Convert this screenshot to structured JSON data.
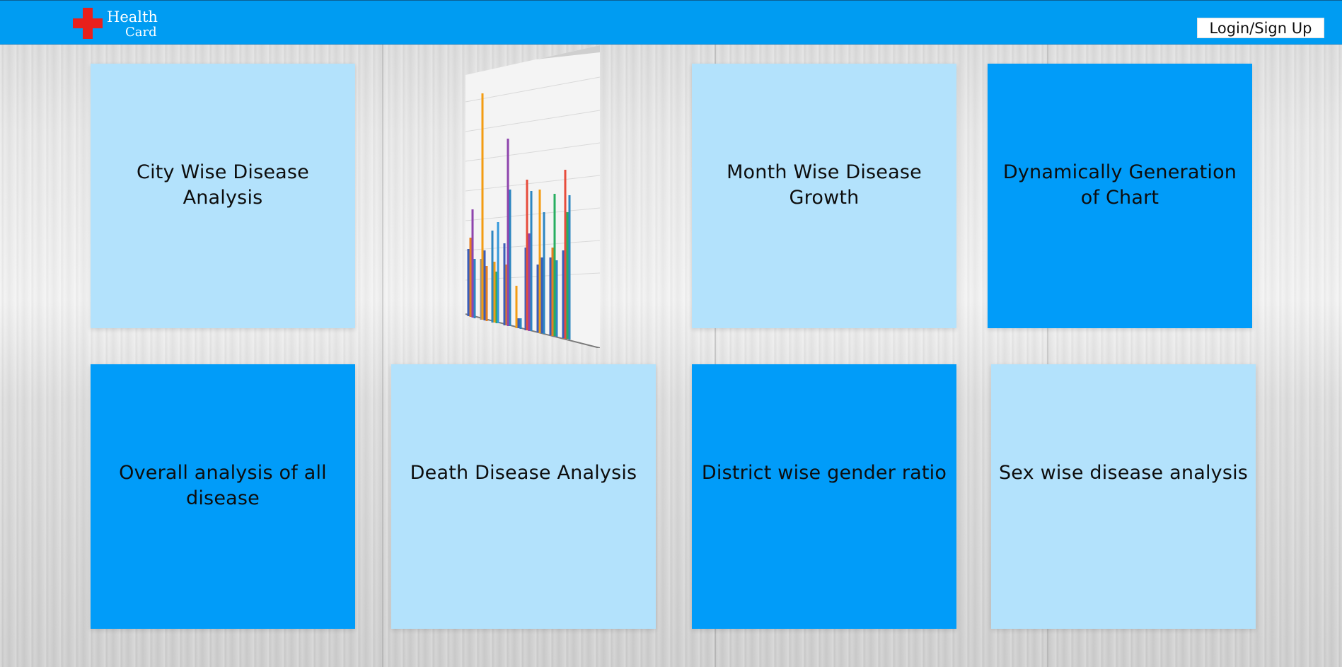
{
  "header": {
    "logo_line1": "Health",
    "logo_line2": "Card",
    "login_label": "Login/Sign Up",
    "logo_icon": "red-cross-icon",
    "bar_color": "#009cf2"
  },
  "tiles": [
    {
      "label": "City Wise Disease Analysis",
      "color": "#b3e2fc"
    },
    {
      "label": "Month Wise Disease Growth",
      "color": "#b3e2fc"
    },
    {
      "label": "Dynamically Generation of Chart",
      "color": "#019cf9"
    },
    {
      "label": "Overall analysis of all disease",
      "color": "#019cf9"
    },
    {
      "label": "Death Disease Analysis",
      "color": "#b3e2fc"
    },
    {
      "label": "District wise gender ratio",
      "color": "#019cf9"
    },
    {
      "label": "Sex wise disease analysis",
      "color": "#b3e2fc"
    }
  ],
  "chart_card": {
    "description_icon": "bar-chart-flip-card-icon"
  }
}
